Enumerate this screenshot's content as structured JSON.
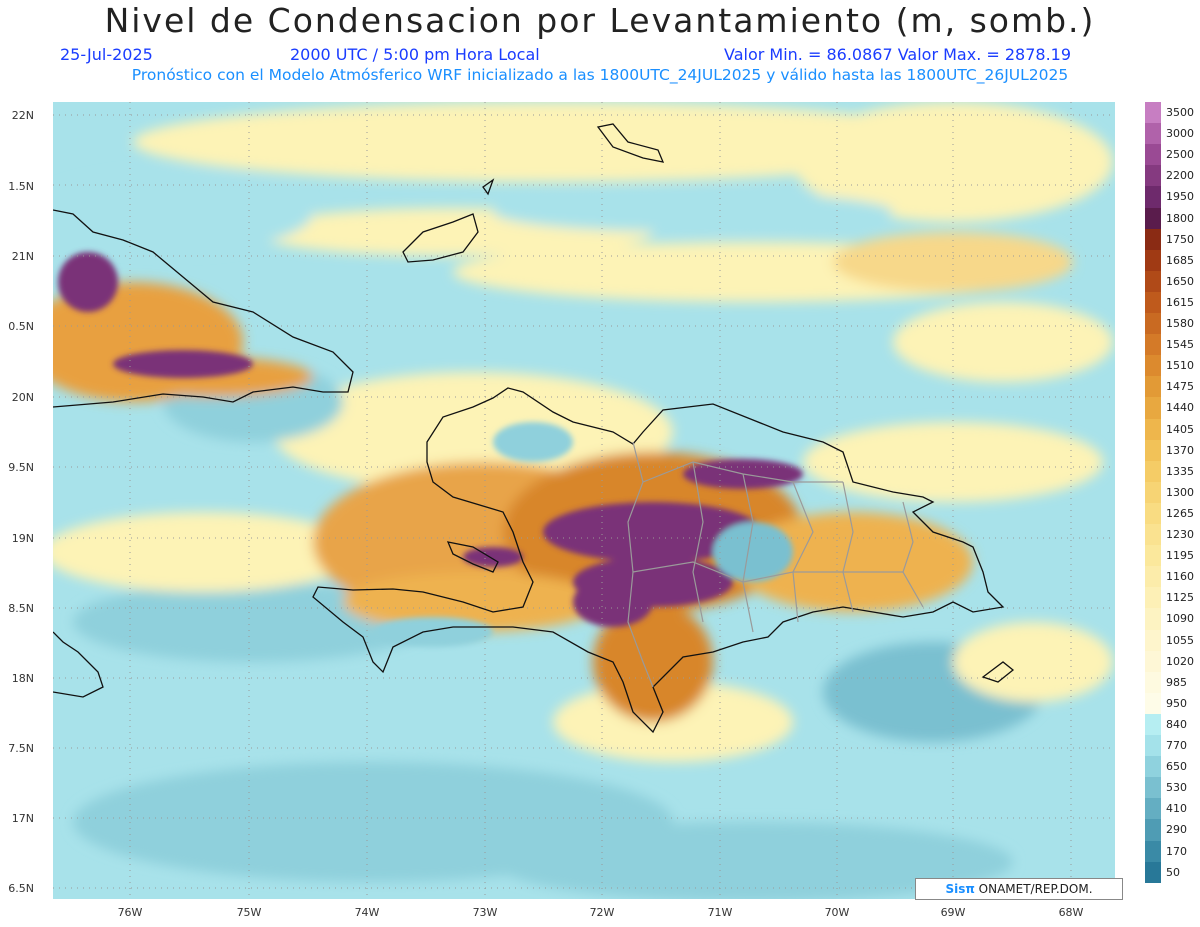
{
  "header": {
    "title": "Nivel de Condensacion por Levantamiento (m, somb.)",
    "date": "25-Jul-2025",
    "time": "2000 UTC / 5:00 pm Hora Local",
    "min_max": "Valor Min. = 86.0867  Valor Max. = 2878.19",
    "model_info": "Pronóstico con el Modelo Atmósferico WRF inicializado a las 1800UTC_24JUL2025 y válido hasta las  1800UTC_26JUL2025"
  },
  "axes": {
    "lat_labels": [
      "22N",
      "1.5N",
      "21N",
      "0.5N",
      "20N",
      "9.5N",
      "19N",
      "8.5N",
      "18N",
      "7.5N",
      "17N",
      "6.5N"
    ],
    "lon_labels": [
      "76W",
      "75W",
      "74W",
      "73W",
      "72W",
      "71W",
      "70W",
      "69W",
      "68W"
    ]
  },
  "colorbar": {
    "levels": [
      "3500",
      "3000",
      "2500",
      "2200",
      "1950",
      "1800",
      "1750",
      "1685",
      "1650",
      "1615",
      "1580",
      "1545",
      "1510",
      "1475",
      "1440",
      "1405",
      "1370",
      "1335",
      "1300",
      "1265",
      "1230",
      "1195",
      "1160",
      "1125",
      "1090",
      "1055",
      "1020",
      "985",
      "950",
      "840",
      "770",
      "650",
      "530",
      "410",
      "290",
      "170",
      "50"
    ],
    "colors": [
      "#c77ec2",
      "#b062aa",
      "#9a4a94",
      "#853a80",
      "#6e2a6c",
      "#5a1c4c",
      "#8a2b14",
      "#a03a14",
      "#b04a18",
      "#bf5a1c",
      "#c96a22",
      "#d47a28",
      "#dc8a2e",
      "#e29a36",
      "#e8a840",
      "#eeb64c",
      "#f2c258",
      "#f5cc66",
      "#f7d474",
      "#f9dc82",
      "#fae290",
      "#fbe89c",
      "#fcecaa",
      "#fdf0b6",
      "#fdf3c2",
      "#fef5cc",
      "#fef7d6",
      "#fefae0",
      "#fefce8",
      "#b6eef2",
      "#a4e2ea",
      "#8fd2de",
      "#7ac0d0",
      "#64aec2",
      "#4f9cb4",
      "#3a8aa6",
      "#287898"
    ]
  },
  "credit": {
    "logo": "Sisπ",
    "text": " ONAMET/REP.DOM."
  }
}
